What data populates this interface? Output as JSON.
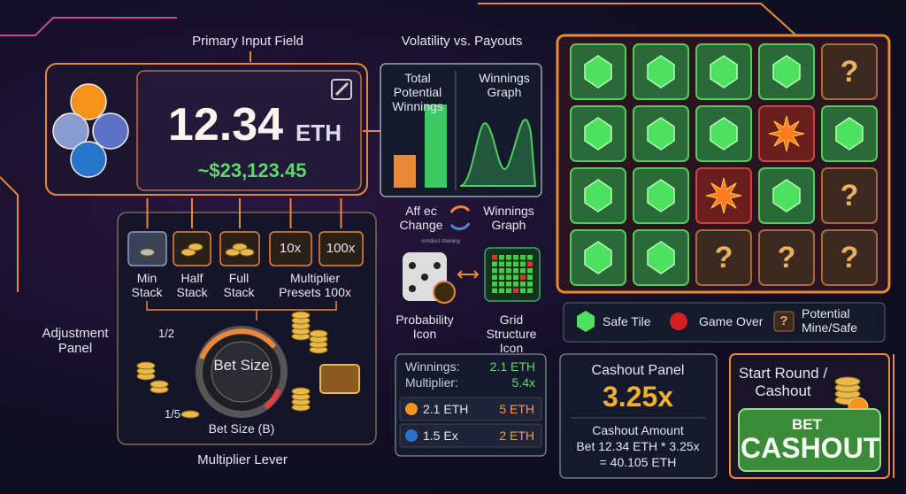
{
  "labels": {
    "primary_input": "Primary Input Field",
    "volatility": "Volatility vs. Payouts",
    "adjustment_panel": "Adjustment Panel",
    "multiplier_lever": "Multiplier Lever"
  },
  "input": {
    "amount": "12.34",
    "unit": "ETH",
    "fiat": "~$23,123.45"
  },
  "volatility": {
    "bar_chart_label": "Total Potential Winnings",
    "graph_label": "Winnings Graph",
    "affect_label": "Aff ec Change",
    "affect_target": "Winnings Graph",
    "dice_note": "conduct chaning",
    "probability_icon": "Probability Icon",
    "grid_icon": "Grid Structure Icon"
  },
  "adjustment": {
    "presets": [
      "10x",
      "100x"
    ],
    "captions": [
      "Min Stack",
      "Half Stack",
      "Full Stack",
      "Multiplier Presets 100x"
    ]
  },
  "lever": {
    "half": "1/2",
    "fifth": "1/5",
    "center": "Bet Size",
    "caption": "Bet Size (B)"
  },
  "grid": {
    "rows": [
      [
        null,
        null,
        null,
        null,
        "?"
      ],
      [
        null,
        null,
        null,
        null,
        null
      ],
      [
        null,
        null,
        null,
        null,
        "?"
      ],
      [
        null,
        null,
        "?",
        "?",
        "?"
      ]
    ]
  },
  "legend": {
    "safe": "Safe Tile",
    "game_over": "Game Over",
    "potential_icon": "?",
    "potential": "Potential Mine/Safe"
  },
  "winnings": {
    "summary": [
      [
        "Winnings:",
        "2.1 ETH"
      ],
      [
        "Multiplier:",
        "5.4x"
      ]
    ],
    "rows": [
      [
        "2.1 ETH",
        "5 ETH"
      ],
      [
        "1.5 Ex",
        "2 ETH"
      ]
    ]
  },
  "cashout": {
    "title": "Cashout Panel",
    "multiplier": "3.25x",
    "amount_label": "Cashout Amount",
    "formula": "Bet 12.34 ETH * 3.25x",
    "result": "= 40.105 ETH"
  },
  "action": {
    "title": "Start Round / Cashout",
    "bet": "BET",
    "cashout": "CASHOUT"
  }
}
